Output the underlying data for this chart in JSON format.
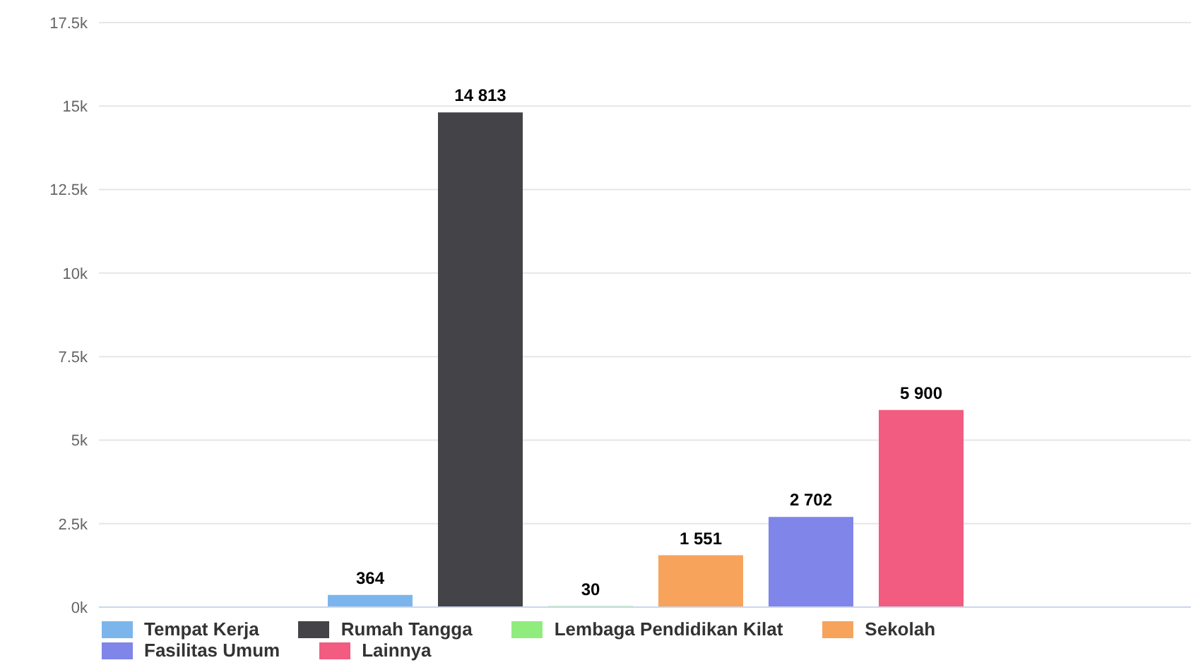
{
  "chart_data": {
    "type": "bar",
    "categories": [
      null
    ],
    "series": [
      {
        "name": "Tempat Kerja",
        "color": "#7cb5ec",
        "values": [
          364
        ],
        "value_labels": [
          "364"
        ]
      },
      {
        "name": "Rumah Tangga",
        "color": "#434348",
        "values": [
          14813
        ],
        "value_labels": [
          "14 813"
        ]
      },
      {
        "name": "Lembaga Pendidikan Kilat",
        "color": "#90ed7d",
        "values": [
          30
        ],
        "value_labels": [
          "30"
        ]
      },
      {
        "name": "Sekolah",
        "color": "#f7a35c",
        "values": [
          1551
        ],
        "value_labels": [
          "1 551"
        ]
      },
      {
        "name": "Fasilitas Umum",
        "color": "#8085e9",
        "values": [
          2702
        ],
        "value_labels": [
          "2 702"
        ]
      },
      {
        "name": "Lainnya",
        "color": "#f15c80",
        "values": [
          5900
        ],
        "value_labels": [
          "5 900"
        ]
      }
    ],
    "ylim": [
      0,
      17500
    ],
    "yticks": [
      {
        "value": 0,
        "label": "0k"
      },
      {
        "value": 2500,
        "label": "2.5k"
      },
      {
        "value": 5000,
        "label": "5k"
      },
      {
        "value": 7500,
        "label": "7.5k"
      },
      {
        "value": 10000,
        "label": "10k"
      },
      {
        "value": 12500,
        "label": "12.5k"
      },
      {
        "value": 15000,
        "label": "15k"
      },
      {
        "value": 17500,
        "label": "17.5k"
      }
    ],
    "grid": "y",
    "legend": "bottom"
  }
}
